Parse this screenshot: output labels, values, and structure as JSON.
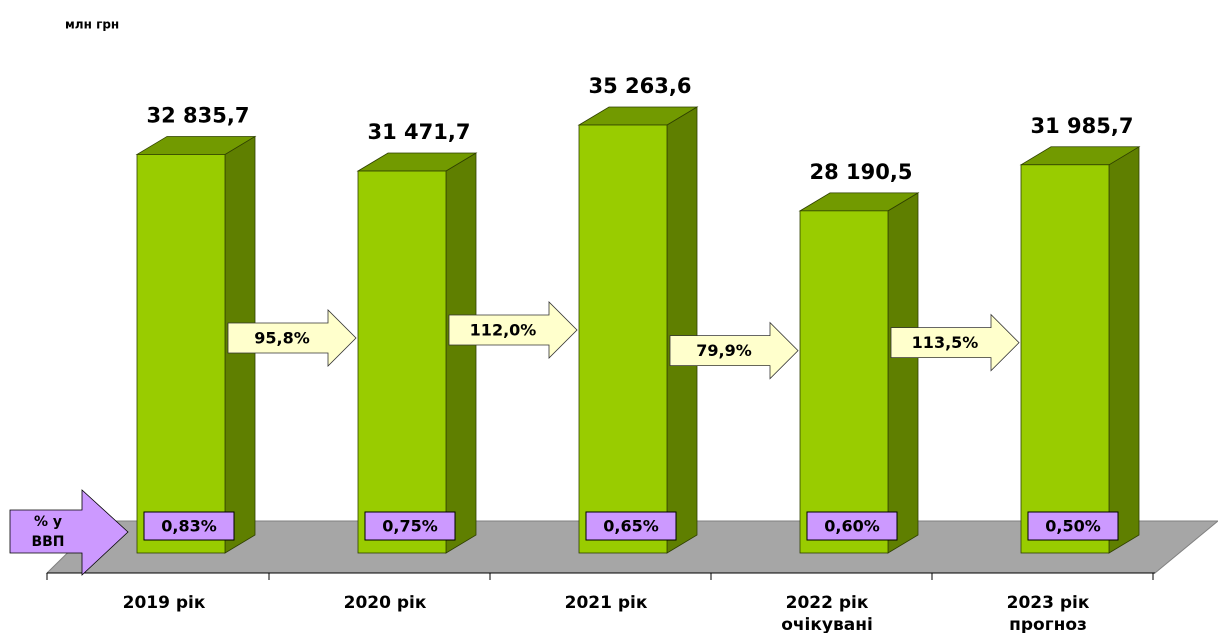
{
  "chart_data": {
    "type": "bar3d",
    "unit_label": "млн грн",
    "categories": [
      [
        "2019 рік"
      ],
      [
        "2020 рік"
      ],
      [
        "2021 рік"
      ],
      [
        "2022 рік",
        "очікувані"
      ],
      [
        "2023 рік",
        "прогноз"
      ]
    ],
    "values": [
      32835.7,
      31471.7,
      35263.6,
      28190.5,
      31985.7
    ],
    "value_labels": [
      "32 835,7",
      "31 471,7",
      "35 263,6",
      "28 190,5",
      "31 985,7"
    ],
    "color": "#99cc00",
    "growth": {
      "values": [
        95.8,
        112.0,
        79.9,
        113.5
      ],
      "value_labels": [
        "95,8%",
        "112,0%",
        "79,9%",
        "113,5%"
      ],
      "color": "#ffffcc"
    },
    "gdp_share": {
      "label": [
        "% у",
        "ВВП"
      ],
      "values": [
        0.83,
        0.75,
        0.65,
        0.6,
        0.5
      ],
      "value_labels": [
        "0,83%",
        "0,75%",
        "0,65%",
        "0,60%",
        "0,50%"
      ],
      "color": "#cc99ff"
    }
  }
}
